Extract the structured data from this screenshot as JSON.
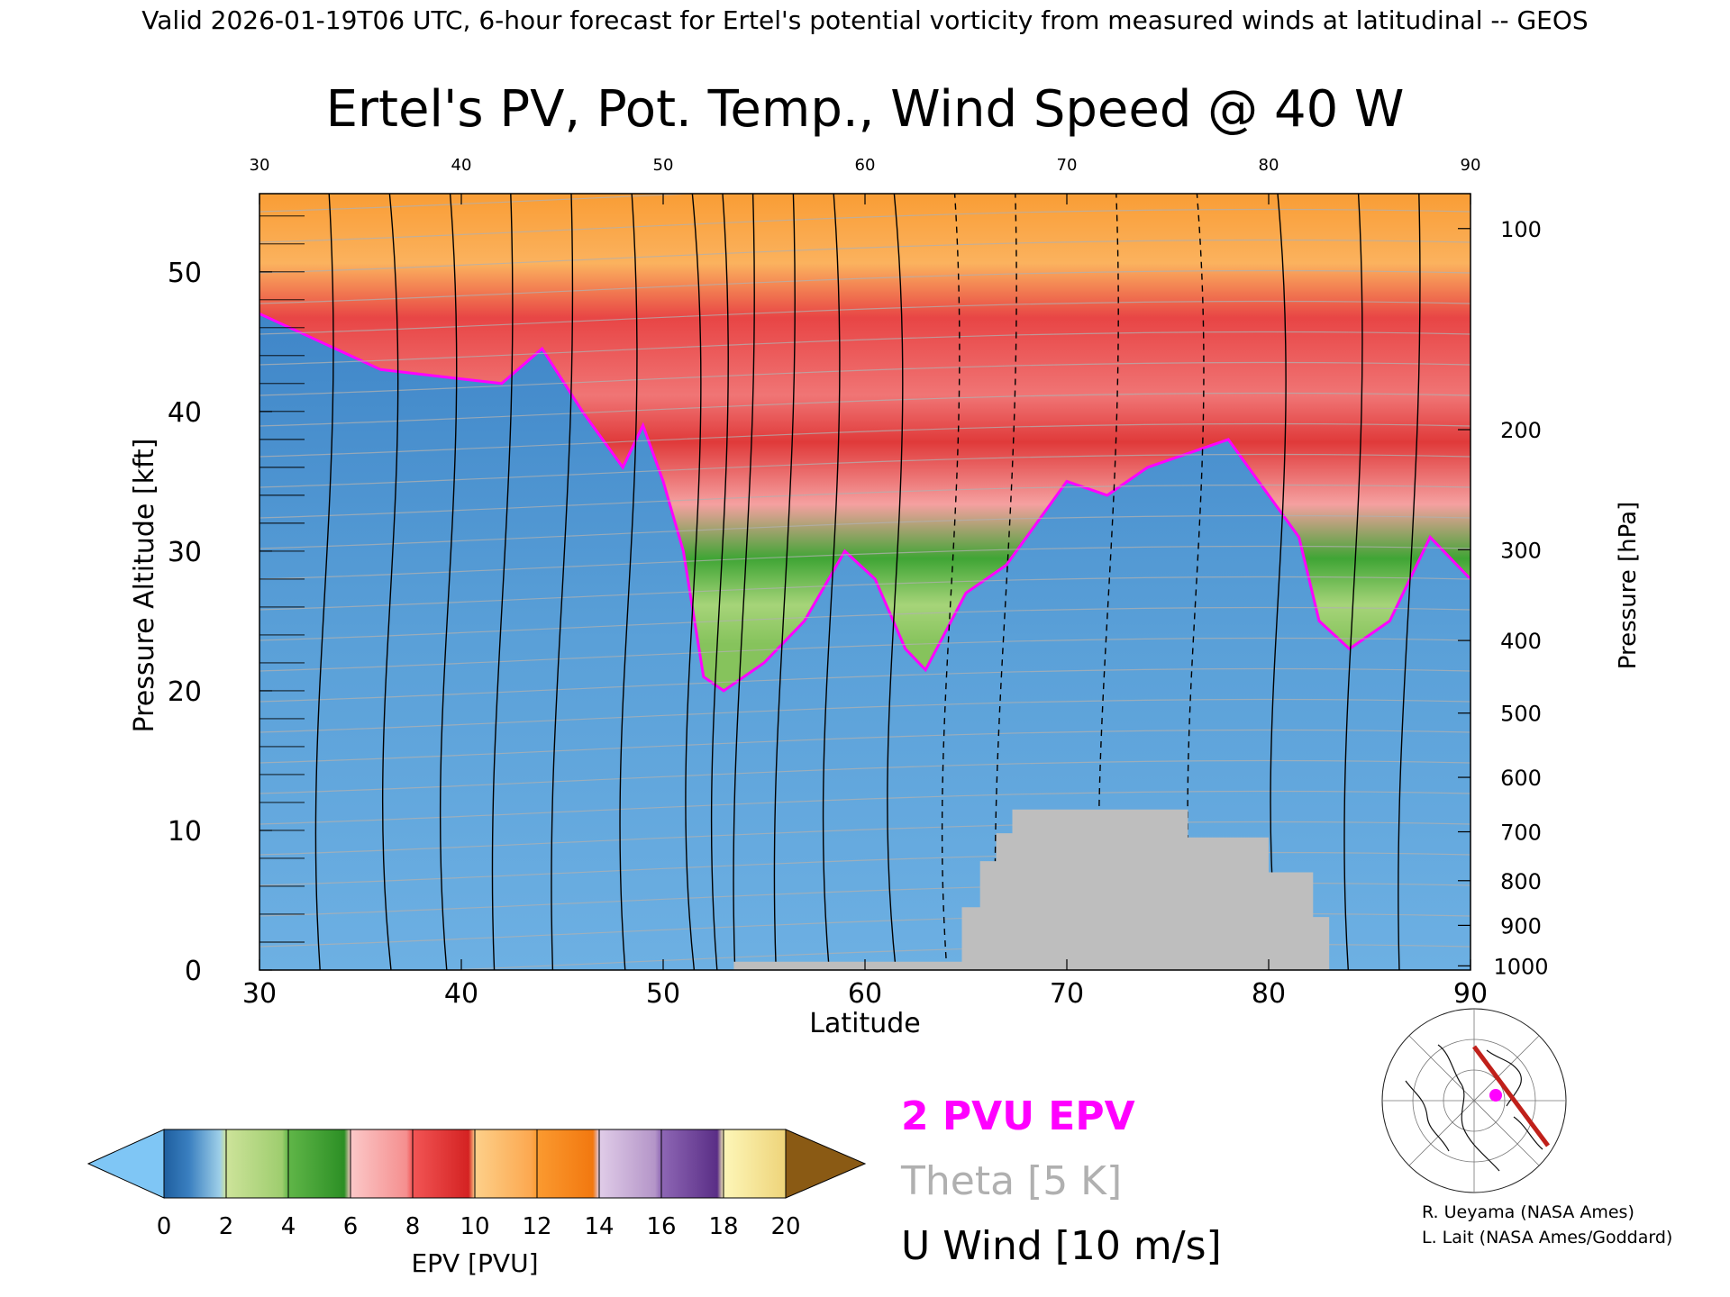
{
  "header": {
    "text": "Valid 2026-01-19T06 UTC, 6-hour forecast for Ertel's potential vorticity from measured winds at latitudinal -- GEOS"
  },
  "chart_data": {
    "type": "heatmap",
    "title": "Ertel's PV, Pot. Temp., Wind Speed @ 40 W",
    "xlabel": "Latitude",
    "ylabel": "Pressure Altitude [kft]",
    "y2label": "Pressure [hPa]",
    "xlim": [
      30,
      90
    ],
    "ylim": [
      0,
      55.6
    ],
    "x_ticks": [
      30,
      40,
      50,
      60,
      70,
      80,
      90
    ],
    "y_ticks": [
      0,
      10,
      20,
      30,
      40,
      50
    ],
    "y2_ticks": [
      {
        "label": "100",
        "kft": 53.1
      },
      {
        "label": "200",
        "kft": 38.7
      },
      {
        "label": "300",
        "kft": 30.1
      },
      {
        "label": "400",
        "kft": 23.6
      },
      {
        "label": "500",
        "kft": 18.4
      },
      {
        "label": "600",
        "kft": 13.8
      },
      {
        "label": "700",
        "kft": 9.9
      },
      {
        "label": "800",
        "kft": 6.4
      },
      {
        "label": "900",
        "kft": 3.2
      },
      {
        "label": "1000",
        "kft": 0.3
      }
    ],
    "epv_2pvu_boundary": {
      "lat": [
        30,
        33,
        36,
        39,
        42,
        44,
        46,
        48,
        49,
        50,
        51,
        52,
        53,
        55,
        57,
        59,
        60.5,
        62,
        63,
        65,
        67,
        70,
        72,
        74,
        76,
        78,
        80,
        81.5,
        82.5,
        84,
        86,
        88,
        90
      ],
      "kft": [
        47,
        45,
        43,
        42.5,
        42,
        44.5,
        40,
        36,
        39,
        35,
        30,
        21,
        20,
        22,
        25,
        30,
        28,
        23,
        21.5,
        27,
        29,
        35,
        34,
        36,
        37,
        38,
        34,
        31,
        25,
        23,
        25,
        31,
        28
      ]
    },
    "topography": {
      "lat": [
        53.5,
        64.8,
        64.8,
        65.7,
        65.7,
        66.5,
        66.5,
        67.3,
        67.3,
        76.0,
        76.0,
        80.0,
        80.0,
        82.2,
        82.2,
        83.0,
        83.0
      ],
      "kft": [
        0.6,
        0.6,
        4.5,
        4.5,
        7.8,
        7.8,
        9.8,
        9.8,
        11.5,
        11.5,
        9.5,
        9.5,
        7.0,
        7.0,
        3.8,
        3.8,
        0.3
      ]
    },
    "colorbar": {
      "label": "EPV [PVU]",
      "ticks": [
        "0",
        "2",
        "4",
        "6",
        "8",
        "10",
        "12",
        "14",
        "16",
        "18",
        "20"
      ],
      "colors": [
        "#3a7fc0",
        "#9ecd6e",
        "#38a02c",
        "#f5a3a3",
        "#e03434",
        "#fcb35d",
        "#f78a1c",
        "#c8aad2",
        "#6e3f9b",
        "#f5eaa0",
        "#8a5a14"
      ],
      "low_color": "#7fc6f5",
      "high_color": "#8a5a14"
    }
  },
  "legend": {
    "pv": "2 PVU EPV",
    "theta": "Theta [5 K]",
    "wind": "U Wind [10 m/s]",
    "pv_color": "#ff00ff",
    "theta_color": "#b0b0b0",
    "wind_color": "#000000"
  },
  "credits": {
    "line1": "R. Ueyama (NASA Ames)",
    "line2": "L. Lait (NASA Ames/Goddard)"
  },
  "colors": {
    "topography": "#bebebe",
    "tropospheric_pv": "#4f93d0",
    "stratospheric_red": "#e84040",
    "upper_orange": "#f99d35",
    "track_line": "#c0201a",
    "marker": "#ff00ff"
  }
}
